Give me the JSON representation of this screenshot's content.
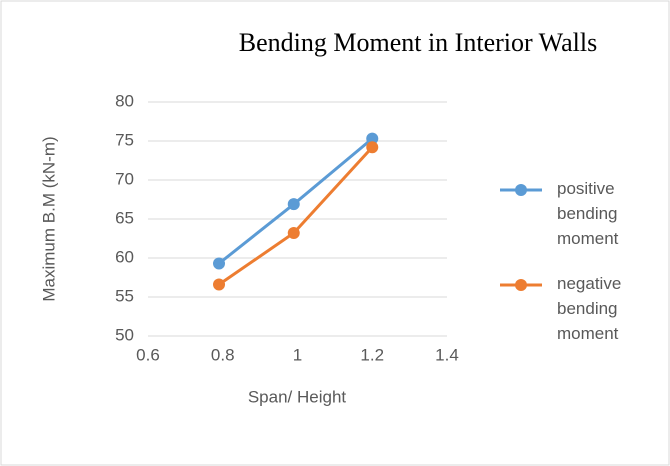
{
  "chart_data": {
    "type": "line",
    "title": "Bending Moment in Interior Walls",
    "x_label": "Span/ Height",
    "y_label": "Maximum B.M (kN-m)",
    "x": [
      0.79,
      0.99,
      1.2
    ],
    "series": [
      {
        "name": "positive bending moment",
        "color": "#5b9bd5",
        "values": [
          59.3,
          66.9,
          75.3
        ]
      },
      {
        "name": "negative bending moment",
        "color": "#ed7d31",
        "values": [
          56.6,
          63.2,
          74.2
        ]
      }
    ],
    "xlim": [
      0.6,
      1.4
    ],
    "xticks": [
      0.6,
      0.8,
      1,
      1.2,
      1.4
    ],
    "ylim": [
      50,
      80
    ],
    "yticks": [
      50,
      55,
      60,
      65,
      70,
      75,
      80
    ],
    "grid": true,
    "legend": "right"
  }
}
